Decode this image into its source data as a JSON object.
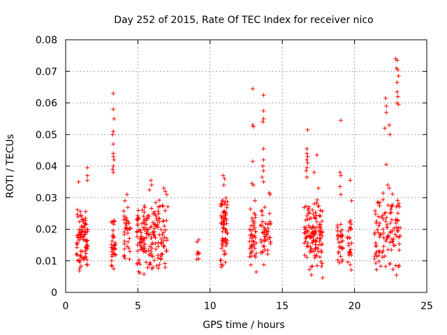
{
  "chart_data": {
    "type": "scatter",
    "title": "Day 252 of 2015, Rate Of TEC Index for receiver nico",
    "xlabel": "GPS time / hours",
    "ylabel": "ROTI / TECUs",
    "xlim": [
      0,
      25
    ],
    "ylim": [
      0,
      0.08
    ],
    "xticks": [
      0,
      5,
      10,
      15,
      20,
      25
    ],
    "xtick_labels": [
      "0",
      "5",
      "10",
      "15",
      "20",
      "25"
    ],
    "yticks": [
      0,
      0.01,
      0.02,
      0.03,
      0.04,
      0.05,
      0.06,
      0.07,
      0.08
    ],
    "ytick_labels": [
      "0",
      "0.01",
      "0.02",
      "0.03",
      "0.04",
      "0.05",
      "0.06",
      "0.07",
      "0.08"
    ],
    "grid": true,
    "marker": "+",
    "color": "#ff0000",
    "clusters": [
      {
        "x": [
          0.75,
          1.55
        ],
        "y": [
          0.006,
          0.028
        ],
        "n": 90
      },
      {
        "x": [
          3.15,
          3.45
        ],
        "y": [
          0.005,
          0.025
        ],
        "n": 35
      },
      {
        "x": [
          4.0,
          4.5
        ],
        "y": [
          0.007,
          0.03
        ],
        "n": 35
      },
      {
        "x": [
          4.9,
          7.1
        ],
        "y": [
          0.005,
          0.03
        ],
        "n": 170
      },
      {
        "x": [
          9.05,
          9.25
        ],
        "y": [
          0.008,
          0.021
        ],
        "n": 8
      },
      {
        "x": [
          10.7,
          11.2
        ],
        "y": [
          0.006,
          0.035
        ],
        "n": 70
      },
      {
        "x": [
          12.7,
          13.2
        ],
        "y": [
          0.005,
          0.03
        ],
        "n": 45
      },
      {
        "x": [
          13.5,
          14.2
        ],
        "y": [
          0.006,
          0.03
        ],
        "n": 45
      },
      {
        "x": [
          16.5,
          17.8
        ],
        "y": [
          0.004,
          0.033
        ],
        "n": 130
      },
      {
        "x": [
          18.8,
          19.2
        ],
        "y": [
          0.007,
          0.025
        ],
        "n": 30
      },
      {
        "x": [
          19.5,
          19.8
        ],
        "y": [
          0.006,
          0.026
        ],
        "n": 25
      },
      {
        "x": [
          21.3,
          23.2
        ],
        "y": [
          0.005,
          0.033
        ],
        "n": 110
      }
    ],
    "points": [
      [
        0.9,
        0.035
      ],
      [
        1.5,
        0.0355
      ],
      [
        1.5,
        0.037
      ],
      [
        1.5,
        0.0395
      ],
      [
        3.3,
        0.063
      ],
      [
        3.3,
        0.058
      ],
      [
        3.35,
        0.055
      ],
      [
        3.3,
        0.051
      ],
      [
        3.25,
        0.05
      ],
      [
        3.3,
        0.047
      ],
      [
        3.3,
        0.043
      ],
      [
        3.35,
        0.042
      ],
      [
        3.3,
        0.04
      ],
      [
        3.25,
        0.039
      ],
      [
        3.3,
        0.038
      ],
      [
        3.3,
        0.044
      ],
      [
        4.25,
        0.031
      ],
      [
        4.1,
        0.029
      ],
      [
        5.9,
        0.0355
      ],
      [
        5.95,
        0.034
      ],
      [
        5.8,
        0.0325
      ],
      [
        6.8,
        0.033
      ],
      [
        6.9,
        0.032
      ],
      [
        7.0,
        0.031
      ],
      [
        10.9,
        0.037
      ],
      [
        11.0,
        0.036
      ],
      [
        10.95,
        0.034
      ],
      [
        12.95,
        0.0645
      ],
      [
        12.95,
        0.053
      ],
      [
        13.0,
        0.0525
      ],
      [
        12.95,
        0.0415
      ],
      [
        12.9,
        0.0345
      ],
      [
        13.0,
        0.034
      ],
      [
        13.7,
        0.0625
      ],
      [
        13.7,
        0.0575
      ],
      [
        13.7,
        0.055
      ],
      [
        13.65,
        0.054
      ],
      [
        13.7,
        0.0455
      ],
      [
        13.7,
        0.042
      ],
      [
        13.65,
        0.04
      ],
      [
        13.7,
        0.0385
      ],
      [
        13.6,
        0.0365
      ],
      [
        13.7,
        0.035
      ],
      [
        14.1,
        0.0315
      ],
      [
        14.15,
        0.031
      ],
      [
        16.75,
        0.0515
      ],
      [
        16.7,
        0.0455
      ],
      [
        16.7,
        0.044
      ],
      [
        16.75,
        0.043
      ],
      [
        16.7,
        0.042
      ],
      [
        16.75,
        0.041
      ],
      [
        16.7,
        0.0395
      ],
      [
        16.65,
        0.0385
      ],
      [
        16.7,
        0.0365
      ],
      [
        17.2,
        0.038
      ],
      [
        17.4,
        0.0435
      ],
      [
        17.5,
        0.033
      ],
      [
        19.05,
        0.0545
      ],
      [
        19.0,
        0.038
      ],
      [
        19.05,
        0.037
      ],
      [
        19.0,
        0.0335
      ],
      [
        19.05,
        0.031
      ],
      [
        19.7,
        0.0355
      ],
      [
        19.8,
        0.029
      ],
      [
        21.5,
        0.022
      ],
      [
        22.15,
        0.0615
      ],
      [
        22.2,
        0.059
      ],
      [
        22.2,
        0.057
      ],
      [
        22.1,
        0.052
      ],
      [
        22.2,
        0.0405
      ],
      [
        22.4,
        0.053
      ],
      [
        22.45,
        0.05
      ],
      [
        22.85,
        0.074
      ],
      [
        22.95,
        0.0735
      ],
      [
        22.9,
        0.071
      ],
      [
        23.0,
        0.0705
      ],
      [
        23.05,
        0.0685
      ],
      [
        22.95,
        0.0665
      ],
      [
        22.95,
        0.0635
      ],
      [
        23.0,
        0.062
      ],
      [
        22.95,
        0.06
      ],
      [
        23.05,
        0.0595
      ],
      [
        22.9,
        0.0055
      ],
      [
        22.4,
        0.033
      ],
      [
        22.3,
        0.034
      ]
    ]
  }
}
